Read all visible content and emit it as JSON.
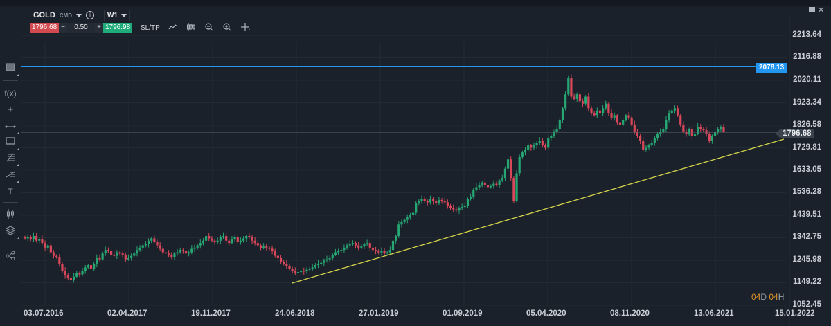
{
  "toolbar": {
    "symbol": "GOLD",
    "symbol_type": "CMD",
    "info_icon": "info-icon",
    "timeframe": "W1",
    "sell_price": "1796.68",
    "buy_price": "1796.98",
    "quantity": "0.50",
    "minus_label": "−",
    "plus_label": "+",
    "sltp_label": "SL/TP",
    "icons": [
      "line-chart-icon",
      "candlestick-type-icon",
      "zoom-out-icon",
      "zoom-in-icon",
      "crosshair-icon"
    ],
    "colors": {
      "sell": "#d2494f",
      "buy": "#1fab7a"
    }
  },
  "window_controls": {
    "minimize_icon": "minimize-icon",
    "close_icon": "close-icon",
    "close_label": "✕"
  },
  "sidebar": {
    "items": [
      {
        "name": "chart-window-icon",
        "glyph": "▣"
      },
      {
        "name": "indicators-icon",
        "glyph": "f(x)"
      },
      {
        "name": "crosshair-tool-icon",
        "glyph": "+"
      },
      {
        "name": "trendline-tool-icon",
        "glyph": "⊶"
      },
      {
        "name": "rectangle-tool-icon",
        "glyph": "▭"
      },
      {
        "name": "fibonacci-tool-icon",
        "glyph": "⚟"
      },
      {
        "name": "pitchfork-tool-icon",
        "glyph": "⋲"
      },
      {
        "name": "text-tool-icon",
        "glyph": "T"
      },
      {
        "name": "chart-type-icon",
        "glyph": "⫼"
      },
      {
        "name": "layers-icon",
        "glyph": "◈"
      },
      {
        "name": "share-icon",
        "glyph": "⋖"
      }
    ]
  },
  "chart": {
    "current_price_label": "1796.68",
    "resistance_label": "2078.13",
    "countdown": {
      "d_num": "04",
      "d_unit": "D",
      "h_num": "04",
      "h_unit": "H"
    },
    "colors": {
      "up": "#26a673",
      "down": "#d9475a",
      "trendline": "#d4d44a",
      "resistance": "#2196f3",
      "price_line": "#5d6570",
      "grid": "#222a33"
    }
  },
  "chart_data": {
    "type": "candlestick",
    "title": "GOLD CMD W1",
    "symbol": "GOLD",
    "timeframe": "W1 (weekly)",
    "y_ticks": [
      2213.64,
      2116.88,
      2020.11,
      1923.34,
      1826.58,
      1729.81,
      1633.05,
      1536.28,
      1439.51,
      1342.75,
      1245.98,
      1149.22,
      1052.45
    ],
    "x_ticks": [
      "03.07.2016",
      "02.04.2017",
      "19.11.2017",
      "24.06.2018",
      "27.01.2019",
      "01.09.2019",
      "05.04.2020",
      "08.11.2020",
      "13.06.2021",
      "15.01.2022"
    ],
    "ylim": [
      1052.45,
      2213.64
    ],
    "grid": true,
    "current_price": 1796.68,
    "horizontal_line": {
      "price": 2078.13,
      "label": "2078.13",
      "color": "#2196f3"
    },
    "trendline": {
      "from": {
        "date": "2018-08",
        "price": 1160
      },
      "to": {
        "date": "2021-12",
        "price": 1770
      },
      "color": "#d4d44a"
    },
    "weekly_closes_approx": [
      1340,
      1345,
      1335,
      1350,
      1330,
      1338,
      1320,
      1300,
      1310,
      1280,
      1265,
      1260,
      1230,
      1200,
      1180,
      1170,
      1160,
      1175,
      1190,
      1185,
      1200,
      1215,
      1225,
      1210,
      1230,
      1255,
      1250,
      1275,
      1290,
      1285,
      1270,
      1265,
      1280,
      1275,
      1270,
      1250,
      1255,
      1265,
      1275,
      1290,
      1300,
      1310,
      1315,
      1330,
      1340,
      1325,
      1310,
      1295,
      1280,
      1275,
      1270,
      1260,
      1275,
      1280,
      1290,
      1285,
      1275,
      1280,
      1295,
      1300,
      1310,
      1320,
      1330,
      1350,
      1340,
      1330,
      1325,
      1330,
      1345,
      1350,
      1330,
      1320,
      1335,
      1345,
      1325,
      1330,
      1340,
      1350,
      1345,
      1330,
      1320,
      1310,
      1300,
      1305,
      1300,
      1295,
      1285,
      1265,
      1255,
      1240,
      1230,
      1220,
      1210,
      1200,
      1190,
      1195,
      1200,
      1198,
      1205,
      1210,
      1215,
      1225,
      1230,
      1235,
      1245,
      1250,
      1255,
      1270,
      1280,
      1285,
      1290,
      1300,
      1310,
      1315,
      1320,
      1310,
      1300,
      1305,
      1315,
      1320,
      1300,
      1290,
      1285,
      1280,
      1285,
      1275,
      1280,
      1290,
      1330,
      1350,
      1400,
      1410,
      1420,
      1430,
      1440,
      1450,
      1490,
      1500,
      1510,
      1500,
      1495,
      1510,
      1500,
      1490,
      1505,
      1500,
      1495,
      1480,
      1470,
      1465,
      1460,
      1470,
      1475,
      1480,
      1510,
      1520,
      1550,
      1560,
      1570,
      1580,
      1570,
      1560,
      1565,
      1575,
      1570,
      1590,
      1600,
      1640,
      1680,
      1600,
      1500,
      1620,
      1690,
      1710,
      1720,
      1740,
      1730,
      1740,
      1750,
      1760,
      1740,
      1730,
      1770,
      1780,
      1800,
      1810,
      1850,
      1900,
      1960,
      2030,
      1950,
      1940,
      1960,
      1930,
      1920,
      1950,
      1900,
      1880,
      1870,
      1890,
      1880,
      1900,
      1920,
      1880,
      1860,
      1870,
      1840,
      1830,
      1850,
      1870,
      1860,
      1830,
      1800,
      1780,
      1760,
      1720,
      1730,
      1740,
      1750,
      1770,
      1790,
      1800,
      1810,
      1850,
      1880,
      1890,
      1900,
      1870,
      1830,
      1800,
      1790,
      1810,
      1780,
      1790,
      1820,
      1810,
      1805,
      1790,
      1760,
      1780,
      1800,
      1810,
      1820,
      1800
    ]
  }
}
